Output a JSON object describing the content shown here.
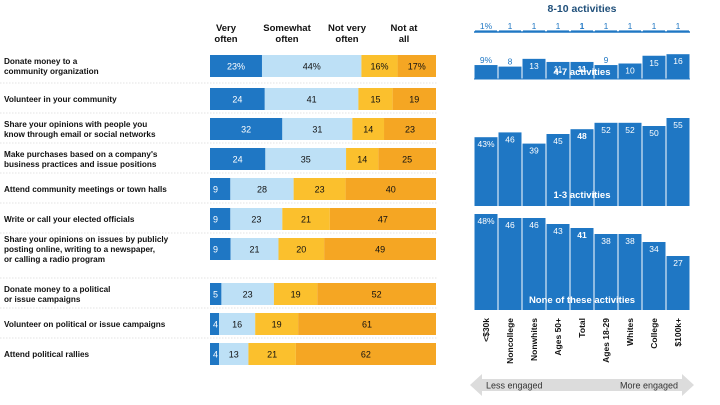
{
  "chart_data": [
    {
      "type": "bar",
      "stacked": true,
      "orientation": "horizontal",
      "series_names": [
        "Very often",
        "Somewhat often",
        "Not very often",
        "Not at all"
      ],
      "series_header_lines": [
        [
          "Very",
          "often"
        ],
        [
          "Somewhat",
          "often"
        ],
        [
          "Not very",
          "often"
        ],
        [
          "Not at",
          "all"
        ]
      ],
      "colors": [
        "#1f77c4",
        "#bde0f6",
        "#fbc02d",
        "#f5a623"
      ],
      "rows": [
        {
          "label": [
            "Donate money to a",
            "community organization"
          ],
          "values": [
            23,
            44,
            16,
            17
          ],
          "labels": [
            "23%",
            "44%",
            "16%",
            "17%"
          ]
        },
        {
          "label": [
            "Volunteer in your community"
          ],
          "values": [
            24,
            41,
            15,
            19
          ],
          "labels": [
            "24",
            "41",
            "15",
            "19"
          ]
        },
        {
          "label": [
            "Share your opinions with people you",
            "know through email or social networks"
          ],
          "values": [
            32,
            31,
            14,
            23
          ],
          "labels": [
            "32",
            "31",
            "14",
            "23"
          ]
        },
        {
          "label": [
            "Make purchases based on a company's",
            "business practices and issue positions"
          ],
          "values": [
            24,
            35,
            14,
            25
          ],
          "labels": [
            "24",
            "35",
            "14",
            "25"
          ]
        },
        {
          "label": [
            "Attend community meetings or town halls"
          ],
          "values": [
            9,
            28,
            23,
            40
          ],
          "labels": [
            "9",
            "28",
            "23",
            "40"
          ]
        },
        {
          "label": [
            "Write or call your elected officials"
          ],
          "values": [
            9,
            23,
            21,
            47
          ],
          "labels": [
            "9",
            "23",
            "21",
            "47"
          ]
        },
        {
          "label": [
            "Share your opinions on issues by publicly",
            "posting online, writing to a newspaper,",
            "or calling a radio program"
          ],
          "values": [
            9,
            21,
            20,
            49
          ],
          "labels": [
            "9",
            "21",
            "20",
            "49"
          ]
        },
        {
          "label": [
            "Donate money to a political",
            "or issue campaigns"
          ],
          "values": [
            5,
            23,
            19,
            52
          ],
          "labels": [
            "5",
            "23",
            "19",
            "52"
          ]
        },
        {
          "label": [
            "Volunteer on political or issue campaigns"
          ],
          "values": [
            4,
            16,
            19,
            61
          ],
          "labels": [
            "4",
            "16",
            "19",
            "61"
          ]
        },
        {
          "label": [
            "Attend political rallies"
          ],
          "values": [
            4,
            13,
            21,
            62
          ],
          "labels": [
            "4",
            "13",
            "21",
            "62"
          ]
        }
      ]
    },
    {
      "type": "bar",
      "orientation": "vertical",
      "categories": [
        "<$30k",
        "Noncollege",
        "Nonwhites",
        "Ages 50+",
        "Total",
        "Ages 18-29",
        "Whites",
        "College",
        "$100k+"
      ],
      "bold_category": "Total",
      "series": [
        {
          "name": "8-10 activities",
          "values": [
            1,
            1,
            1,
            1,
            1,
            1,
            1,
            1,
            1
          ],
          "labels": [
            "1%",
            "1",
            "1",
            "1",
            "1",
            "1",
            "1",
            "1",
            "1"
          ]
        },
        {
          "name": "4-7 activities",
          "values": [
            9,
            8,
            13,
            11,
            11,
            9,
            10,
            15,
            16
          ],
          "labels": [
            "9%",
            "8",
            "13",
            "11",
            "11",
            "9",
            "10",
            "15",
            "16"
          ]
        },
        {
          "name": "1-3 activities",
          "values": [
            43,
            46,
            39,
            45,
            48,
            52,
            52,
            50,
            55
          ],
          "labels": [
            "43%",
            "46",
            "39",
            "45",
            "48",
            "52",
            "52",
            "50",
            "55"
          ]
        },
        {
          "name": "None of these activities",
          "values": [
            48,
            46,
            46,
            43,
            41,
            38,
            38,
            34,
            27
          ],
          "labels": [
            "48%",
            "46",
            "46",
            "43",
            "41",
            "38",
            "38",
            "34",
            "27"
          ]
        }
      ],
      "arrow_left": "Less engaged",
      "arrow_right": "More engaged"
    }
  ],
  "colors": {
    "dark_blue": "#1f77c4",
    "light_blue": "#bde0f6",
    "yellow": "#fbc02d",
    "orange": "#f5a623",
    "text_blue": "#1f77c4",
    "arrow_gray": "#dcdcdc"
  }
}
